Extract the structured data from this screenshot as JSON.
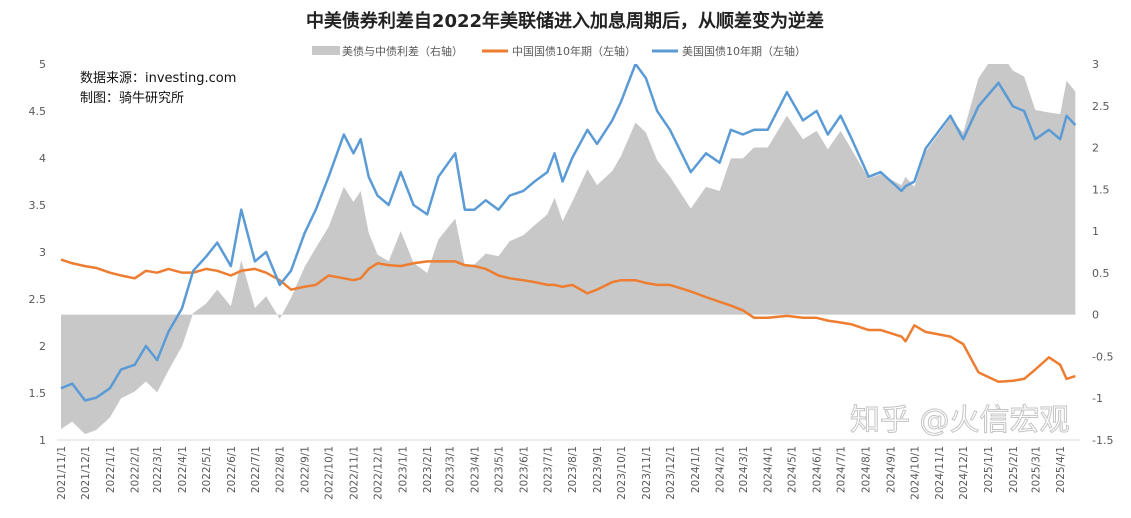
{
  "chart_data": {
    "type": "line",
    "title": "中美债券利差自2022年美联储进入加息周期后，从顺差变为逆差",
    "annotations": [
      "数据来源：investing.com",
      "制图：骑牛研究所"
    ],
    "watermark": "知乎 @火信宏观",
    "legend_position": "top",
    "grid": false,
    "left_axis": {
      "ylim": [
        1,
        5
      ],
      "ticks": [
        "1",
        "1.5",
        "2",
        "2.5",
        "3",
        "3.5",
        "4",
        "4.5",
        "5"
      ]
    },
    "right_axis": {
      "ylim": [
        -1.5,
        3
      ],
      "ticks": [
        "-1.5",
        "-1",
        "-0.5",
        "0",
        "0.5",
        "1",
        "1.5",
        "2",
        "2.5",
        "3"
      ]
    },
    "x_ticks": [
      "2021/11/1",
      "2021/12/1",
      "2022/1/1",
      "2022/2/1",
      "2022/3/1",
      "2022/4/1",
      "2022/5/1",
      "2022/6/1",
      "2022/7/1",
      "2022/8/1",
      "2022/9/1",
      "2022/10/1",
      "2022/11/1",
      "2022/12/1",
      "2023/1/1",
      "2023/2/1",
      "2023/3/1",
      "2023/4/1",
      "2023/5/1",
      "2023/6/1",
      "2023/7/1",
      "2023/8/1",
      "2023/9/1",
      "2023/10/1",
      "2023/11/1",
      "2023/12/1",
      "2024/1/1",
      "2024/2/1",
      "2024/3/1",
      "2024/4/1",
      "2024/5/1",
      "2024/6/1",
      "2024/7/1",
      "2024/8/1",
      "2024/9/1",
      "2024/10/1",
      "2024/11/1",
      "2024/12/1",
      "2025/1/1",
      "2025/2/1",
      "2025/3/1",
      "2025/4/1"
    ],
    "x": [
      "2021-11-01",
      "2021-11-15",
      "2021-12-01",
      "2021-12-15",
      "2022-01-01",
      "2022-01-15",
      "2022-02-01",
      "2022-02-15",
      "2022-03-01",
      "2022-03-15",
      "2022-04-01",
      "2022-04-15",
      "2022-05-01",
      "2022-05-15",
      "2022-06-01",
      "2022-06-14",
      "2022-07-01",
      "2022-07-15",
      "2022-08-01",
      "2022-08-15",
      "2022-09-01",
      "2022-09-15",
      "2022-10-01",
      "2022-10-20",
      "2022-11-01",
      "2022-11-10",
      "2022-11-20",
      "2022-12-01",
      "2022-12-15",
      "2022-12-30",
      "2023-01-15",
      "2023-02-01",
      "2023-02-15",
      "2023-03-08",
      "2023-03-20",
      "2023-04-01",
      "2023-04-15",
      "2023-05-01",
      "2023-05-15",
      "2023-06-01",
      "2023-06-15",
      "2023-07-01",
      "2023-07-10",
      "2023-07-20",
      "2023-08-01",
      "2023-08-20",
      "2023-09-01",
      "2023-09-20",
      "2023-10-01",
      "2023-10-19",
      "2023-11-01",
      "2023-11-15",
      "2023-12-01",
      "2023-12-27",
      "2024-01-15",
      "2024-02-01",
      "2024-02-15",
      "2024-03-01",
      "2024-03-15",
      "2024-04-01",
      "2024-04-25",
      "2024-05-15",
      "2024-06-01",
      "2024-06-15",
      "2024-07-01",
      "2024-07-15",
      "2024-08-05",
      "2024-08-20",
      "2024-09-15",
      "2024-09-20",
      "2024-10-01",
      "2024-10-15",
      "2024-11-15",
      "2024-12-01",
      "2024-12-20",
      "2025-01-14",
      "2025-02-01",
      "2025-02-15",
      "2025-03-01",
      "2025-03-18",
      "2025-04-01",
      "2025-04-09",
      "2025-04-20"
    ],
    "series": [
      {
        "name": "美债与中债利差（右轴）",
        "axis": "right",
        "kind": "area",
        "color": "#c8c8c8",
        "values": [
          -1.37,
          -1.28,
          -1.43,
          -1.38,
          -1.23,
          -1.0,
          -0.92,
          -0.8,
          -0.93,
          -0.67,
          -0.38,
          0.02,
          0.13,
          0.3,
          0.1,
          0.65,
          0.08,
          0.22,
          -0.05,
          0.2,
          0.57,
          0.8,
          1.05,
          1.53,
          1.35,
          1.48,
          0.98,
          0.72,
          0.64,
          1.0,
          0.62,
          0.5,
          0.9,
          1.15,
          0.59,
          0.6,
          0.73,
          0.7,
          0.88,
          0.95,
          1.07,
          1.2,
          1.4,
          1.12,
          1.35,
          1.74,
          1.55,
          1.72,
          1.9,
          2.3,
          2.18,
          1.85,
          1.65,
          1.27,
          1.53,
          1.48,
          1.87,
          1.87,
          2.0,
          2.0,
          2.38,
          2.1,
          2.2,
          1.98,
          2.2,
          1.97,
          1.63,
          1.68,
          1.55,
          1.65,
          1.53,
          1.95,
          2.35,
          2.18,
          2.83,
          3.18,
          2.92,
          2.85,
          2.45,
          2.42,
          2.4,
          2.8,
          2.67
        ]
      },
      {
        "name": "中国国债10年期（左轴）",
        "axis": "left",
        "kind": "line",
        "color": "#ed7d31",
        "values": [
          2.92,
          2.88,
          2.85,
          2.83,
          2.78,
          2.75,
          2.72,
          2.8,
          2.78,
          2.82,
          2.78,
          2.78,
          2.82,
          2.8,
          2.75,
          2.8,
          2.82,
          2.78,
          2.7,
          2.6,
          2.63,
          2.65,
          2.75,
          2.72,
          2.7,
          2.72,
          2.82,
          2.88,
          2.86,
          2.85,
          2.88,
          2.9,
          2.9,
          2.9,
          2.86,
          2.85,
          2.82,
          2.75,
          2.72,
          2.7,
          2.68,
          2.65,
          2.65,
          2.63,
          2.65,
          2.56,
          2.6,
          2.68,
          2.7,
          2.7,
          2.67,
          2.65,
          2.65,
          2.58,
          2.52,
          2.47,
          2.43,
          2.38,
          2.3,
          2.3,
          2.32,
          2.3,
          2.3,
          2.27,
          2.25,
          2.23,
          2.17,
          2.17,
          2.1,
          2.05,
          2.22,
          2.15,
          2.1,
          2.02,
          1.72,
          1.62,
          1.63,
          1.65,
          1.75,
          1.88,
          1.8,
          1.65,
          1.68
        ]
      },
      {
        "name": "美国国债10年期（左轴）",
        "axis": "left",
        "kind": "line",
        "color": "#5b9bd5",
        "values": [
          1.55,
          1.6,
          1.42,
          1.45,
          1.55,
          1.75,
          1.8,
          2.0,
          1.85,
          2.15,
          2.4,
          2.8,
          2.95,
          3.1,
          2.85,
          3.45,
          2.9,
          3.0,
          2.65,
          2.8,
          3.2,
          3.45,
          3.8,
          4.25,
          4.05,
          4.2,
          3.8,
          3.6,
          3.5,
          3.85,
          3.5,
          3.4,
          3.8,
          4.05,
          3.45,
          3.45,
          3.55,
          3.45,
          3.6,
          3.65,
          3.75,
          3.85,
          4.05,
          3.75,
          4.0,
          4.3,
          4.15,
          4.4,
          4.6,
          5.0,
          4.85,
          4.5,
          4.3,
          3.85,
          4.05,
          3.95,
          4.3,
          4.25,
          4.3,
          4.3,
          4.7,
          4.4,
          4.5,
          4.25,
          4.45,
          4.2,
          3.8,
          3.85,
          3.65,
          3.7,
          3.75,
          4.1,
          4.45,
          4.2,
          4.55,
          4.8,
          4.55,
          4.5,
          4.2,
          4.3,
          4.2,
          4.45,
          4.35
        ]
      }
    ]
  }
}
